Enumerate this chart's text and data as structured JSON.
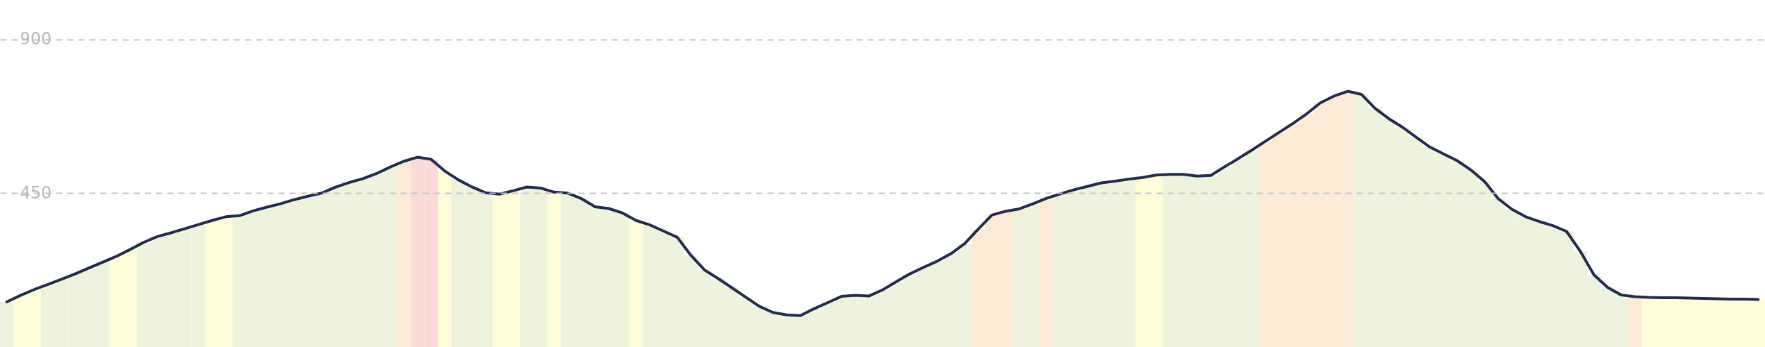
{
  "chart_data": {
    "type": "bar",
    "categories": [
      null,
      null,
      null,
      null,
      null,
      null,
      null,
      null,
      null,
      null,
      null,
      null,
      null,
      null,
      null,
      null,
      null,
      null,
      null,
      null,
      null,
      null,
      null,
      null,
      null,
      null,
      null,
      null,
      null,
      null,
      null,
      null,
      null,
      null,
      null,
      null,
      null,
      null,
      null,
      null,
      null,
      null,
      null,
      null,
      null,
      null,
      null,
      null,
      null,
      null,
      null,
      null,
      null,
      null,
      null,
      null,
      null,
      null,
      null,
      null,
      null,
      null,
      null,
      null,
      null,
      null,
      null,
      null,
      null,
      null,
      null,
      null,
      null,
      null,
      null,
      null,
      null,
      null,
      null,
      null,
      null,
      null,
      null,
      null,
      null,
      null,
      null,
      null,
      null,
      null,
      null,
      null,
      null,
      null,
      null,
      null,
      null,
      null,
      null,
      null,
      null,
      null,
      null,
      null,
      null,
      null,
      null,
      null,
      null,
      null,
      null,
      null,
      null,
      null,
      null,
      null,
      null,
      null,
      null,
      null,
      null,
      null,
      null,
      null,
      null,
      null,
      null,
      null,
      null
    ],
    "series": [
      {
        "colors": [
          "#eef3dd",
          "#fefcd9",
          "#fefcd9",
          "#eef3dd",
          "#eef3dd",
          "#eef3dd",
          "#eef3dd",
          "#eef3dd",
          "#fefcd9",
          "#fefcd9",
          "#eef3dd",
          "#eef3dd",
          "#eef3dd",
          "#eef3dd",
          "#eef3dd",
          "#fefcd9",
          "#fefcd9",
          "#eef3dd",
          "#eef3dd",
          "#eef3dd",
          "#eef3dd",
          "#eef3dd",
          "#eef3dd",
          "#eef3dd",
          "#eef3dd",
          "#eef3dd",
          "#eef3dd",
          "#eef3dd",
          "#eef3dd",
          "#fdebd8",
          "#fadbd9",
          "#fadbd9",
          "#fefcd9",
          "#eef3dd",
          "#eef3dd",
          "#eef3dd",
          "#fefcd9",
          "#fefcd9",
          "#eef3dd",
          "#eef3dd",
          "#fefcd9",
          "#eef3dd",
          "#eef3dd",
          "#eef3dd",
          "#eef3dd",
          "#eef3dd",
          "#fefcd9",
          "#eef3dd",
          "#eef3dd",
          "#eef3dd",
          "#eef3dd",
          "#eef3dd",
          "#eef3dd",
          "#eef3dd",
          "#eef3dd",
          "#eef3dd",
          "#eef3dd",
          "#eef3dd",
          "#eef3dd",
          "#eef3dd",
          "#eef3dd",
          "#eef3dd",
          "#eef3dd",
          "#eef3dd",
          "#eef3dd",
          "#eef3dd",
          "#eef3dd",
          "#eef3dd",
          "#eef3dd",
          "#eef3dd",
          "#eef3dd",
          "#fdebd8",
          "#fdebd8",
          "#fdebd8",
          "#eef3dd",
          "#eef3dd",
          "#fdebd8",
          "#eef3dd",
          "#eef3dd",
          "#eef3dd",
          "#eef3dd",
          "#eef3dd",
          "#eef3dd",
          "#fefcd9",
          "#fefcd9",
          "#eef3dd",
          "#eef3dd",
          "#eef3dd",
          "#eef3dd",
          "#eef3dd",
          "#eef3dd",
          "#eef3dd",
          "#fdebd8",
          "#fdebd8",
          "#fdebd8",
          "#fdebd8",
          "#fdebd8",
          "#fdebd8",
          "#fdebd8",
          "#eef3dd",
          "#eef3dd",
          "#eef3dd",
          "#eef3dd",
          "#eef3dd",
          "#eef3dd",
          "#eef3dd",
          "#eef3dd",
          "#eef3dd",
          "#eef3dd",
          "#eef3dd",
          "#eef3dd",
          "#eef3dd",
          "#eef3dd",
          "#eef3dd",
          "#eef3dd",
          "#eef3dd",
          "#eef3dd",
          "#eef3dd",
          "#eef3dd",
          "#fdebd8",
          "#fefcd9",
          "#fefcd9",
          "#fefcd9",
          "#fefcd9",
          "#fefcd9",
          "#fefcd9",
          "#fefcd9",
          "#fefcd9",
          "#fefcd9"
        ],
        "values": [
          132,
          151,
          168,
          183,
          198,
          214,
          231,
          248,
          265,
          285,
          306,
          323,
          334,
          346,
          358,
          370,
          381,
          384,
          398,
          409,
          419,
          431,
          441,
          450,
          467,
          481,
          492,
          507,
          526,
          543,
          555,
          549,
          515,
          489,
          468,
          451,
          447,
          457,
          468,
          465,
          453,
          450,
          434,
          410,
          405,
          392,
          370,
          357,
          339,
          321,
          268,
          225,
          200,
          173,
          146,
          119,
          101,
          94,
          92,
          112,
          130,
          148,
          151,
          149,
          167,
          191,
          214,
          233,
          251,
          273,
          302,
          345,
          386,
          397,
          404,
          419,
          435,
          448,
          460,
          470,
          480,
          485,
          491,
          496,
          503,
          505,
          505,
          500,
          502,
          527,
          551,
          576,
          602,
          628,
          654,
          682,
          714,
          734,
          748,
          739,
          698,
          668,
          643,
          614,
          585,
          565,
          545,
          518,
          484,
          434,
          403,
          381,
          367,
          355,
          338,
          280,
          211,
          174,
          152,
          147,
          145,
          144,
          144,
          143,
          142,
          141,
          140,
          140,
          139
        ]
      },
      {
        "type": "line",
        "color": "#222c4a",
        "values": [
          132,
          151,
          168,
          183,
          198,
          214,
          231,
          248,
          265,
          285,
          306,
          323,
          334,
          346,
          358,
          370,
          381,
          384,
          398,
          409,
          419,
          431,
          441,
          450,
          467,
          481,
          492,
          507,
          526,
          543,
          555,
          549,
          515,
          489,
          468,
          451,
          447,
          457,
          468,
          465,
          453,
          450,
          434,
          410,
          405,
          392,
          370,
          357,
          339,
          321,
          268,
          225,
          200,
          173,
          146,
          119,
          101,
          94,
          92,
          112,
          130,
          148,
          151,
          149,
          167,
          191,
          214,
          233,
          251,
          273,
          302,
          345,
          386,
          397,
          404,
          419,
          435,
          448,
          460,
          470,
          480,
          485,
          491,
          496,
          503,
          505,
          505,
          500,
          502,
          527,
          551,
          576,
          602,
          628,
          654,
          682,
          714,
          734,
          748,
          739,
          698,
          668,
          643,
          614,
          585,
          565,
          545,
          518,
          484,
          434,
          403,
          381,
          367,
          355,
          338,
          280,
          211,
          174,
          152,
          147,
          145,
          144,
          144,
          143,
          142,
          141,
          140,
          140,
          139
        ]
      }
    ],
    "ylim": [
      0,
      1015
    ],
    "yticks": [
      450,
      900
    ],
    "grid": "y",
    "tick_labels": "y",
    "line_style": "solid",
    "marker": "none"
  }
}
